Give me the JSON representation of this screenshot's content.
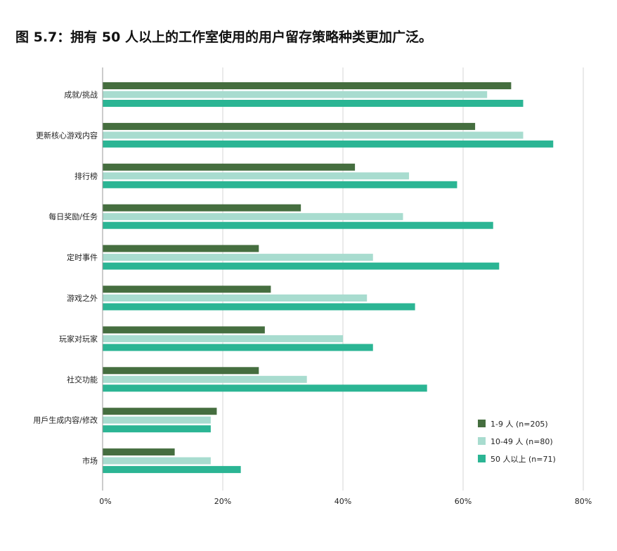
{
  "title": "图 5.7：拥有 50 人以上的工作室使用的用户留存策略种类更加广泛。",
  "chart_data": {
    "type": "bar",
    "orientation": "horizontal",
    "categories": [
      "成就/挑战",
      "更新核心游戏内容",
      "排行榜",
      "每日奖励/任务",
      "定时事件",
      "游戏之外",
      "玩家对玩家",
      "社交功能",
      "用戶生成内容/修改",
      "市场"
    ],
    "series": [
      {
        "name": "1-9 人 (n=205)",
        "color": "#456e3f",
        "values": [
          68,
          62,
          42,
          33,
          26,
          28,
          27,
          26,
          19,
          12
        ]
      },
      {
        "name": "10-49 人 (n=80)",
        "color": "#a8dccf",
        "values": [
          64,
          70,
          51,
          50,
          45,
          44,
          40,
          34,
          18,
          18
        ]
      },
      {
        "name": "50 人以上 (n=71)",
        "color": "#2bb594",
        "values": [
          70,
          75,
          59,
          65,
          66,
          52,
          45,
          54,
          18,
          23
        ]
      }
    ],
    "xlim": [
      0,
      80
    ],
    "xticks": [
      0,
      20,
      40,
      60,
      80
    ],
    "xtick_labels": [
      "0%",
      "20%",
      "40%",
      "60%",
      "80%"
    ],
    "grid": true,
    "legend_position": "bottom-right"
  }
}
